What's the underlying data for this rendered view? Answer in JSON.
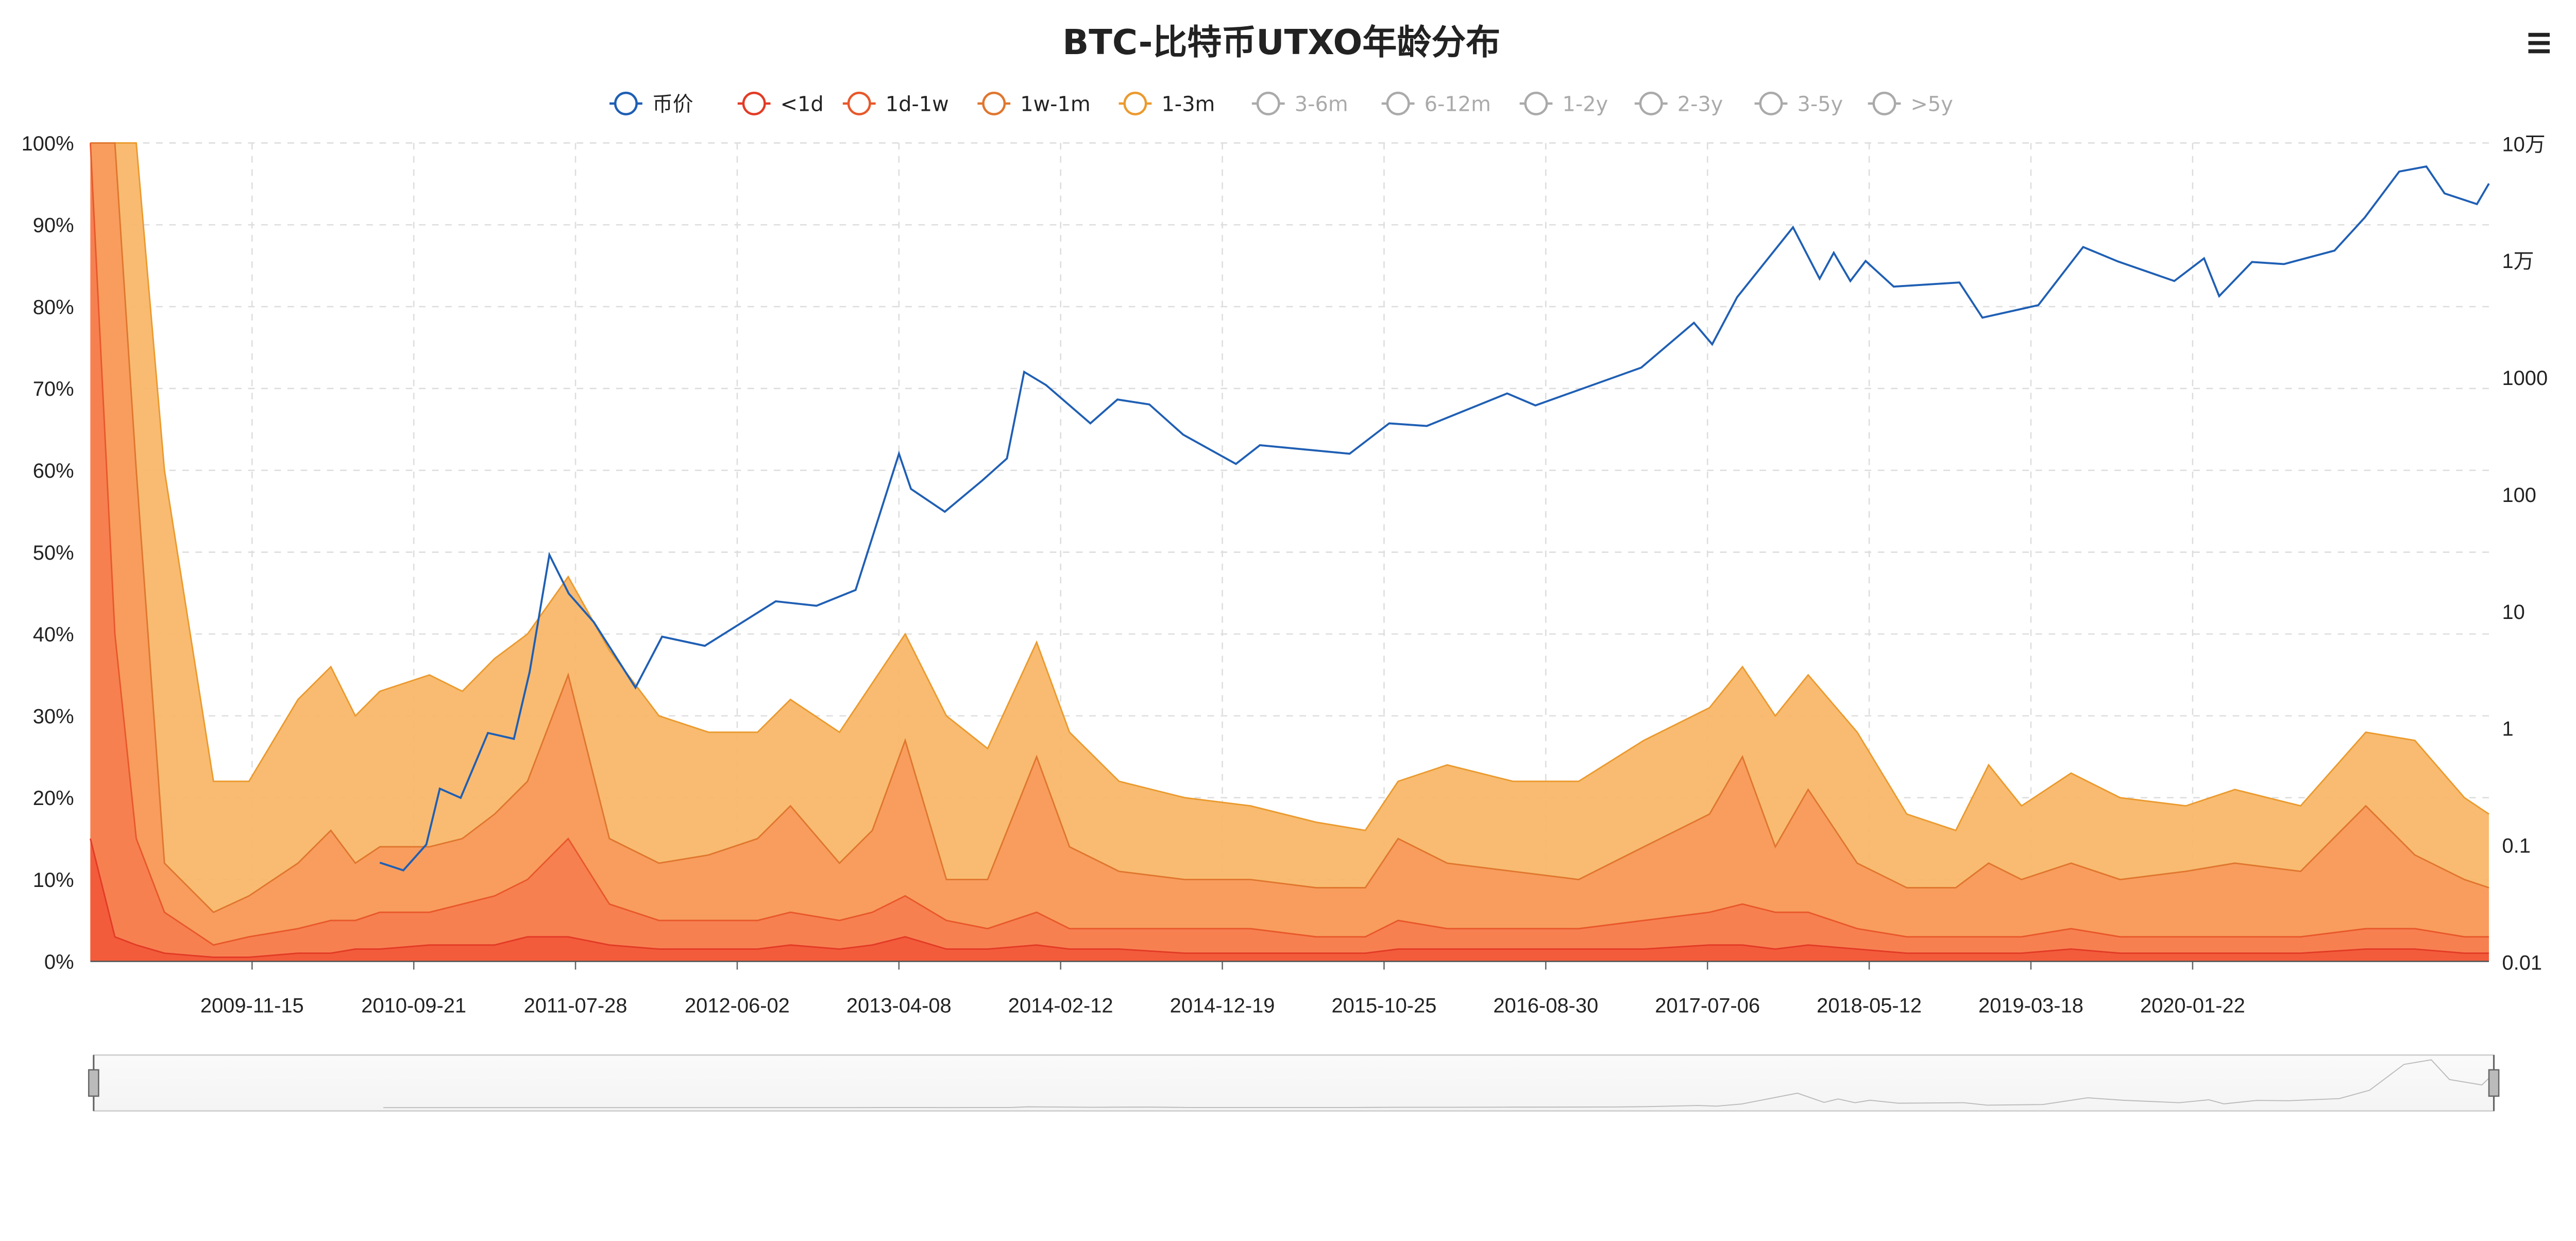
{
  "title": "BTC-比特币UTXO年龄分布",
  "menu_icon": "hamburger-menu-icon",
  "legend": [
    {
      "label": "币价",
      "color": "#1f5fb4",
      "active": true
    },
    {
      "label": "<1d",
      "color": "#e23b26",
      "active": true
    },
    {
      "label": "1d-1w",
      "color": "#e8582a",
      "active": true
    },
    {
      "label": "1w-1m",
      "color": "#e0762e",
      "active": true
    },
    {
      "label": "1-3m",
      "color": "#eb9a2e",
      "active": true
    },
    {
      "label": "3-6m",
      "color": "#999999",
      "active": false
    },
    {
      "label": "6-12m",
      "color": "#999999",
      "active": false
    },
    {
      "label": "1-2y",
      "color": "#999999",
      "active": false
    },
    {
      "label": "2-3y",
      "color": "#999999",
      "active": false
    },
    {
      "label": "3-5y",
      "color": "#999999",
      "active": false
    },
    {
      "label": ">5y",
      "color": "#999999",
      "active": false
    }
  ],
  "chart_data": {
    "type": "area",
    "stacked": true,
    "title": "BTC-比特币UTXO年龄分布",
    "x_range": [
      "2009-01-09",
      "2021-08-12"
    ],
    "x_tick_labels": [
      "2009-11-15",
      "2010-09-21",
      "2011-07-28",
      "2012-06-02",
      "2013-04-08",
      "2014-02-12",
      "2014-12-19",
      "2015-10-25",
      "2016-08-30",
      "2017-07-06",
      "2018-05-12",
      "2019-03-18",
      "2020-01-22"
    ],
    "y_left": {
      "ticks": [
        "0%",
        "10%",
        "20%",
        "30%",
        "40%",
        "50%",
        "60%",
        "70%",
        "80%",
        "90%",
        "100%"
      ],
      "ylim": [
        0,
        100
      ],
      "unit": "%"
    },
    "y_right": {
      "scale": "log",
      "ticks": [
        "0.01",
        "0.1",
        "1",
        "10",
        "100",
        "1000",
        "1万",
        "10万"
      ],
      "ylim": [
        0.01,
        100000
      ]
    },
    "grid": true,
    "legend_position": "top",
    "x": [
      "2009-01-09",
      "2009-02-25",
      "2009-04-07",
      "2009-05-31",
      "2009-09-02",
      "2009-11-09",
      "2010-02-11",
      "2010-04-15",
      "2010-06-01",
      "2010-07-18",
      "2010-10-21",
      "2010-12-23",
      "2011-02-23",
      "2011-04-27",
      "2011-07-14",
      "2011-10-01",
      "2012-01-04",
      "2012-04-08",
      "2012-07-11",
      "2012-09-12",
      "2012-12-15",
      "2013-02-16",
      "2013-04-20",
      "2013-07-08",
      "2013-09-25",
      "2013-12-28",
      "2014-03-01",
      "2014-06-04",
      "2014-10-08",
      "2015-02-11",
      "2015-06-17",
      "2015-09-19",
      "2015-11-21",
      "2016-02-23",
      "2016-06-28",
      "2016-11-01",
      "2017-03-06",
      "2017-07-10",
      "2017-09-11",
      "2017-11-13",
      "2018-01-15",
      "2018-04-19",
      "2018-07-23",
      "2018-10-25",
      "2018-12-27",
      "2019-02-28",
      "2019-06-03",
      "2019-09-05",
      "2020-01-09",
      "2020-04-12",
      "2020-08-16",
      "2020-12-19",
      "2021-03-23",
      "2021-06-26",
      "2021-08-12"
    ],
    "series": [
      {
        "name": "<1d",
        "axis": "left",
        "color": "#f2593a",
        "values": [
          15,
          3,
          2,
          1,
          0.5,
          0.5,
          1,
          1,
          1.5,
          1.5,
          2,
          2,
          2,
          3,
          3,
          2,
          1.5,
          1.5,
          1.5,
          2,
          1.5,
          2,
          3,
          1.5,
          1.5,
          2,
          1.5,
          1.5,
          1,
          1,
          1,
          1,
          1.5,
          1.5,
          1.5,
          1.5,
          1.5,
          2,
          2,
          1.5,
          2,
          1.5,
          1,
          1,
          1,
          1,
          1.5,
          1,
          1,
          1,
          1,
          1.5,
          1.5,
          1,
          1
        ]
      },
      {
        "name": "1d-1w",
        "axis": "left",
        "color": "#f67e50",
        "values": [
          85,
          37,
          13,
          5,
          1.5,
          2.5,
          3,
          4,
          3.5,
          4.5,
          4,
          5,
          6,
          7,
          12,
          5,
          3.5,
          3.5,
          3.5,
          4,
          3.5,
          4,
          5,
          3.5,
          2.5,
          4,
          2.5,
          2.5,
          3,
          3,
          2,
          2,
          3.5,
          2.5,
          2.5,
          2.5,
          3.5,
          4,
          5,
          4.5,
          4,
          2.5,
          2,
          2,
          2,
          2,
          2.5,
          2,
          2,
          2,
          2,
          2.5,
          2.5,
          2,
          2
        ]
      },
      {
        "name": "1w-1m",
        "axis": "left",
        "color": "#f79a5c",
        "values": [
          0,
          60,
          45,
          6,
          4,
          5,
          8,
          11,
          7,
          8,
          8,
          8,
          10,
          12,
          20,
          8,
          7,
          8,
          10,
          13,
          7,
          10,
          19,
          5,
          6,
          19,
          10,
          7,
          6,
          6,
          6,
          6,
          10,
          8,
          7,
          6,
          9,
          12,
          18,
          8,
          15,
          8,
          6,
          6,
          9,
          7,
          8,
          7,
          8,
          9,
          8,
          15,
          9,
          7,
          6
        ]
      },
      {
        "name": "1-3m",
        "axis": "left",
        "color": "#f7b565",
        "values": [
          0,
          0,
          40,
          48,
          16,
          14,
          20,
          20,
          18,
          19,
          21,
          18,
          19,
          18,
          12,
          23,
          18,
          15,
          13,
          13,
          16,
          18,
          13,
          20,
          16,
          14,
          14,
          11,
          10,
          9,
          8,
          7,
          7,
          12,
          11,
          12,
          13,
          13,
          11,
          16,
          14,
          16,
          9,
          7,
          12,
          9,
          11,
          10,
          8,
          9,
          8,
          9,
          14,
          10,
          9
        ]
      },
      {
        "name": "币价",
        "axis": "right",
        "type": "line",
        "color": "#1f5fb4",
        "points": [
          [
            "2010-07-18",
            0.07
          ],
          [
            "2010-09-01",
            0.06
          ],
          [
            "2010-10-15",
            0.1
          ],
          [
            "2010-11-10",
            0.3
          ],
          [
            "2010-12-20",
            0.25
          ],
          [
            "2011-02-10",
            0.9
          ],
          [
            "2011-04-01",
            0.8
          ],
          [
            "2011-05-01",
            3
          ],
          [
            "2011-06-08",
            30
          ],
          [
            "2011-07-15",
            14
          ],
          [
            "2011-09-01",
            8
          ],
          [
            "2011-11-20",
            2.2
          ],
          [
            "2012-01-10",
            6
          ],
          [
            "2012-04-01",
            5
          ],
          [
            "2012-08-15",
            12
          ],
          [
            "2012-11-01",
            11
          ],
          [
            "2013-01-15",
            15
          ],
          [
            "2013-04-08",
            220
          ],
          [
            "2013-05-01",
            110
          ],
          [
            "2013-07-05",
            70
          ],
          [
            "2013-09-15",
            130
          ],
          [
            "2013-11-01",
            200
          ],
          [
            "2013-12-04",
            1100
          ],
          [
            "2014-01-15",
            850
          ],
          [
            "2014-04-10",
            400
          ],
          [
            "2014-06-01",
            640
          ],
          [
            "2014-08-01",
            580
          ],
          [
            "2014-10-05",
            320
          ],
          [
            "2015-01-14",
            180
          ],
          [
            "2015-03-01",
            260
          ],
          [
            "2015-08-20",
            220
          ],
          [
            "2015-11-04",
            400
          ],
          [
            "2016-01-15",
            380
          ],
          [
            "2016-06-17",
            720
          ],
          [
            "2016-08-10",
            570
          ],
          [
            "2016-12-31",
            960
          ],
          [
            "2017-03-01",
            1200
          ],
          [
            "2017-06-10",
            2900
          ],
          [
            "2017-07-15",
            1900
          ],
          [
            "2017-09-01",
            4800
          ],
          [
            "2017-12-17",
            19000
          ],
          [
            "2018-02-06",
            6900
          ],
          [
            "2018-03-05",
            11500
          ],
          [
            "2018-04-06",
            6600
          ],
          [
            "2018-05-05",
            9800
          ],
          [
            "2018-06-28",
            5900
          ],
          [
            "2018-11-01",
            6400
          ],
          [
            "2018-12-15",
            3200
          ],
          [
            "2019-04-01",
            4100
          ],
          [
            "2019-06-26",
            12900
          ],
          [
            "2019-09-01",
            9700
          ],
          [
            "2019-12-18",
            6600
          ],
          [
            "2020-02-13",
            10300
          ],
          [
            "2020-03-13",
            4900
          ],
          [
            "2020-05-15",
            9600
          ],
          [
            "2020-07-15",
            9200
          ],
          [
            "2020-10-20",
            12000
          ],
          [
            "2020-12-17",
            23000
          ],
          [
            "2021-02-21",
            57000
          ],
          [
            "2021-04-14",
            63000
          ],
          [
            "2021-05-19",
            37000
          ],
          [
            "2021-07-20",
            30000
          ],
          [
            "2021-08-12",
            45000
          ]
        ]
      }
    ]
  }
}
